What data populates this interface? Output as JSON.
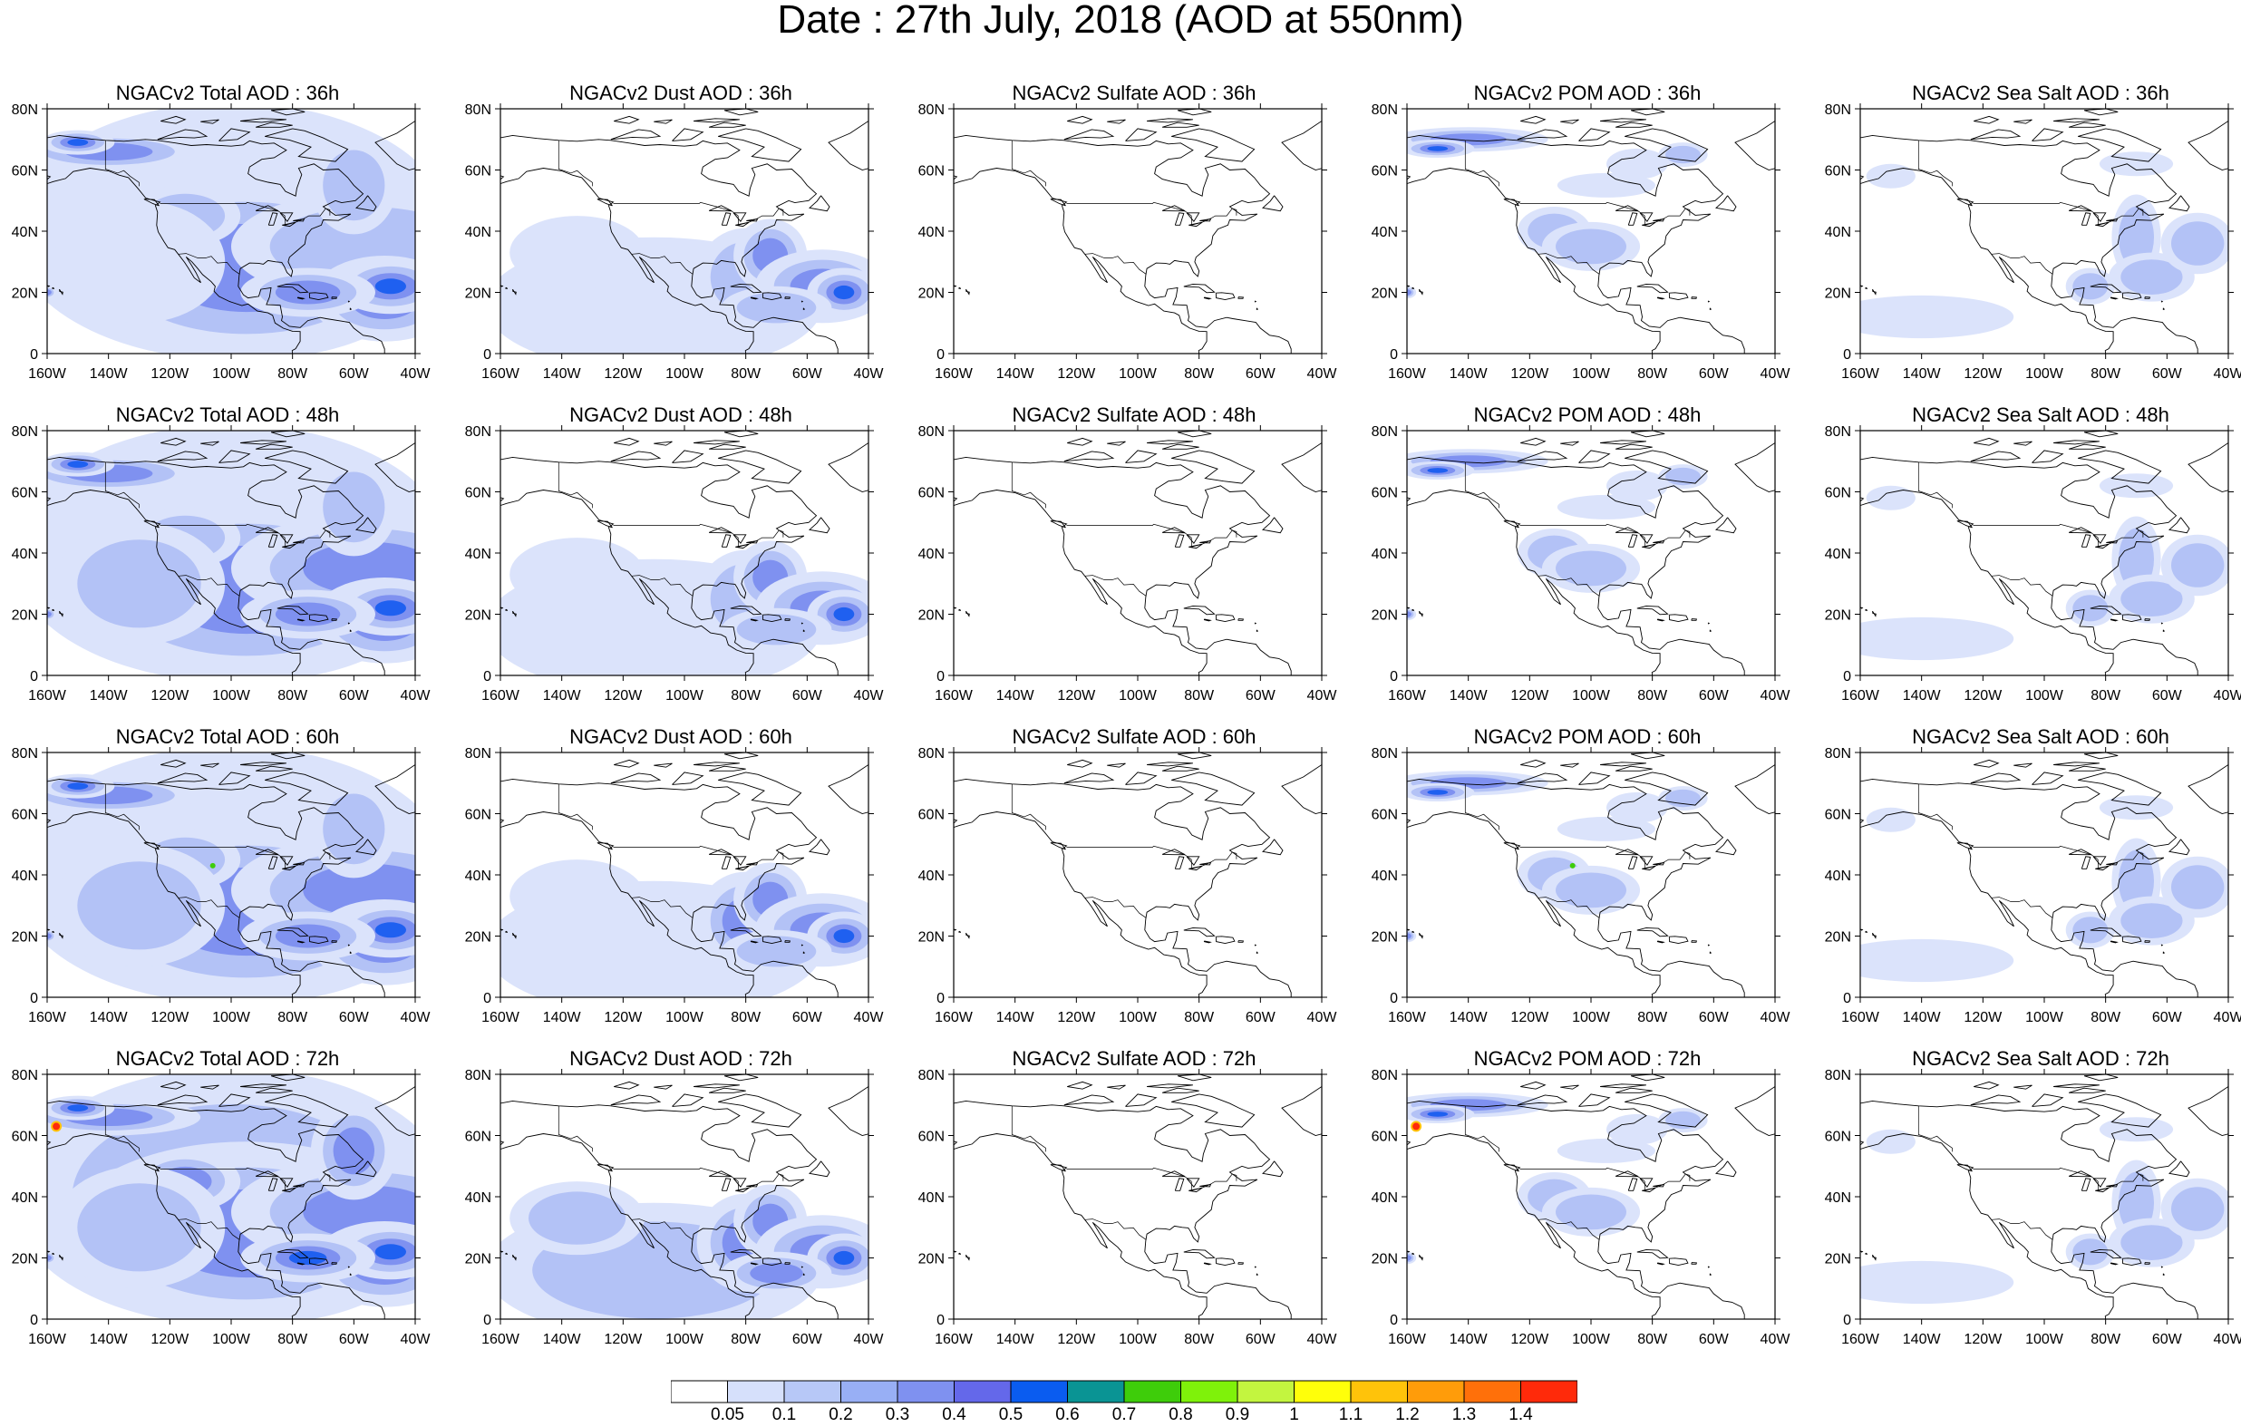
{
  "figure": {
    "title": "Date : 27th July, 2018 (AOD at 550nm)"
  },
  "axes": {
    "x_ticks": [
      "160W",
      "140W",
      "120W",
      "100W",
      "80W",
      "60W",
      "40W"
    ],
    "y_ticks": [
      "0",
      "20N",
      "40N",
      "60N",
      "80N"
    ],
    "lon_range": [
      -160,
      -40
    ],
    "lat_range": [
      0,
      80
    ]
  },
  "columns": [
    {
      "species": "Total",
      "color_intensity": 0.55
    },
    {
      "species": "Dust",
      "color_intensity": 0.35
    },
    {
      "species": "Sulfate",
      "color_intensity": 0.03
    },
    {
      "species": "POM",
      "color_intensity": 0.25
    },
    {
      "species": "Sea Salt",
      "color_intensity": 0.18
    }
  ],
  "panels": [
    [
      "NGACv2 Total AOD : 36h",
      "NGACv2 Dust AOD : 36h",
      "NGACv2 Sulfate AOD : 36h",
      "NGACv2 POM AOD : 36h",
      "NGACv2 Sea Salt AOD : 36h"
    ],
    [
      "NGACv2 Total AOD : 48h",
      "NGACv2 Dust AOD : 48h",
      "NGACv2 Sulfate AOD : 48h",
      "NGACv2 POM AOD : 48h",
      "NGACv2 Sea Salt AOD : 48h"
    ],
    [
      "NGACv2 Total AOD : 60h",
      "NGACv2 Dust AOD : 60h",
      "NGACv2 Sulfate AOD : 60h",
      "NGACv2 POM AOD : 60h",
      "NGACv2 Sea Salt AOD : 60h"
    ],
    [
      "NGACv2 Total AOD : 72h",
      "NGACv2 Dust AOD : 72h",
      "NGACv2 Sulfate AOD : 72h",
      "NGACv2 POM AOD : 72h",
      "NGACv2 Sea Salt  AOD : 72h"
    ]
  ],
  "colorbar": {
    "labels": [
      "0.05",
      "0.1",
      "0.2",
      "0.3",
      "0.4",
      "0.5",
      "0.6",
      "0.7",
      "0.8",
      "0.9",
      "1",
      "1.1",
      "1.2",
      "1.3",
      "1.4"
    ],
    "colors": [
      "#ffffff",
      "#d6e0fb",
      "#b7c8f7",
      "#98aff5",
      "#7f91f0",
      "#6468ea",
      "#0a5cf0",
      "#0a9494",
      "#3ecd0a",
      "#7ff20a",
      "#c3f53f",
      "#ffff0a",
      "#ffc30a",
      "#ff9c0a",
      "#ff700a",
      "#ff2a0a"
    ]
  },
  "palette": {
    "shade_light": "#dbe3fb",
    "shade_mid": "#b3c2f6",
    "shade_dark": "#7f91f0",
    "shade_core": "#1f60f0",
    "coast": "#000000"
  }
}
